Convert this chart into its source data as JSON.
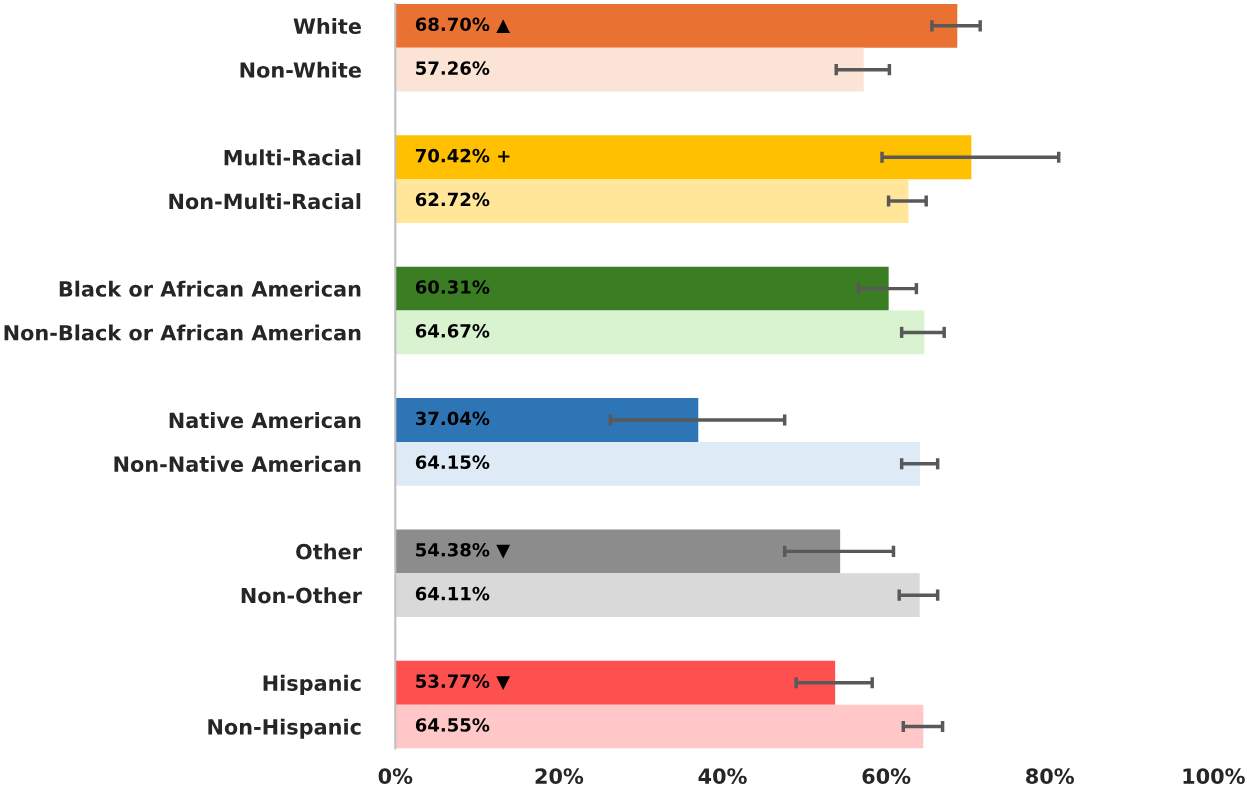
{
  "chart_data": {
    "type": "bar",
    "orientation": "horizontal",
    "categories": [
      "White",
      "Non-White",
      null,
      "Multi-Racial",
      "Non-Multi-Racial",
      null,
      "Black or African American",
      "Non-Black or African American",
      null,
      "Native American",
      "Non-Native American",
      null,
      "Other",
      "Non-Other",
      null,
      "Hispanic",
      "Non-Hispanic"
    ],
    "values": [
      68.7,
      57.26,
      null,
      70.42,
      62.72,
      null,
      60.31,
      64.67,
      null,
      37.04,
      64.15,
      null,
      54.38,
      64.11,
      null,
      53.77,
      64.55
    ],
    "colors": [
      "#e97132",
      "#fbe3d6",
      null,
      "#ffc000",
      "#ffe699",
      null,
      "#3b7d23",
      "#d9f2d0",
      null,
      "#2e75b6",
      "#deebf7",
      null,
      "#8c8c8c",
      "#d9d9d9",
      null,
      "#ff5050",
      "#ffc7c7"
    ],
    "errors": [
      [
        65.6,
        71.5
      ],
      [
        53.9,
        60.4
      ],
      null,
      [
        59.5,
        81.1
      ],
      [
        60.3,
        64.9
      ],
      null,
      [
        56.6,
        63.7
      ],
      [
        61.9,
        67.1
      ],
      null,
      [
        26.3,
        47.6
      ],
      [
        61.9,
        66.3
      ],
      null,
      [
        47.6,
        60.9
      ],
      [
        61.6,
        66.3
      ],
      null,
      [
        49.0,
        58.3
      ],
      [
        62.1,
        66.9
      ]
    ],
    "value_labels": [
      "68.70% ▲",
      "57.26%",
      null,
      "70.42% +",
      "62.72%",
      null,
      "60.31%",
      "64.67%",
      null,
      "37.04%",
      "64.15%",
      null,
      "54.38% ▼",
      "64.11%",
      null,
      "53.77% ▼",
      "64.55%"
    ],
    "xlim": [
      0,
      100
    ],
    "xticks": [
      {
        "value": 0,
        "label": "0%"
      },
      {
        "value": 20,
        "label": "20%"
      },
      {
        "value": 40,
        "label": "40%"
      },
      {
        "value": 60,
        "label": "60%"
      },
      {
        "value": 80,
        "label": "80%"
      },
      {
        "value": 100,
        "label": "100%"
      }
    ],
    "grid": false,
    "legend": false
  }
}
